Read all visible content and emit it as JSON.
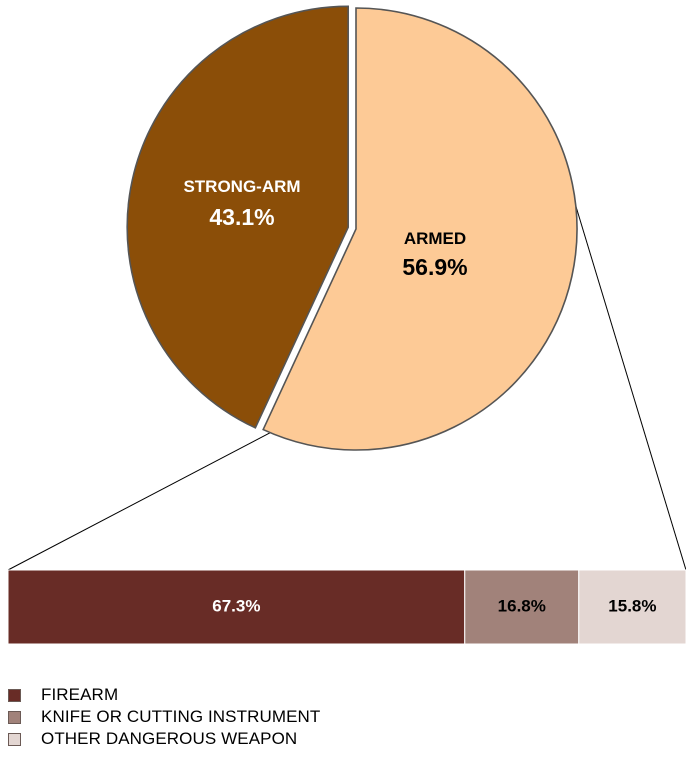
{
  "chart_data": [
    {
      "type": "pie",
      "slices": [
        {
          "label": "STRONG-ARM",
          "value": 43.1,
          "value_label": "43.1%",
          "color": "#8B4E08",
          "exploded": true
        },
        {
          "label": "ARMED",
          "value": 56.9,
          "value_label": "56.9%",
          "color": "#FDCA96"
        }
      ],
      "label_color_dark_slice": "#FFFFFF",
      "label_color_light_slice": "#000000",
      "outline_color": "#555555"
    },
    {
      "type": "bar",
      "orientation": "horizontal",
      "stacked": true,
      "breakdown_of": "ARMED",
      "segments": [
        {
          "name": "FIREARM",
          "value": 67.3,
          "value_label": "67.3%",
          "color": "#682C26",
          "text_color": "#FFFFFF"
        },
        {
          "name": "KNIFE OR CUTTING INSTRUMENT",
          "value": 16.8,
          "value_label": "16.8%",
          "color": "#A1827A",
          "text_color": "#000000"
        },
        {
          "name": "OTHER DANGEROUS WEAPON",
          "value": 15.8,
          "value_label": "15.8%",
          "color": "#E3D6D2",
          "text_color": "#000000"
        }
      ],
      "legend_position": "bottom-left"
    }
  ],
  "legend": [
    {
      "label": "FIREARM",
      "color": "#682C26"
    },
    {
      "label": "KNIFE OR CUTTING INSTRUMENT",
      "color": "#A1827A"
    },
    {
      "label": "OTHER DANGEROUS WEAPON",
      "color": "#E3D6D2"
    }
  ]
}
